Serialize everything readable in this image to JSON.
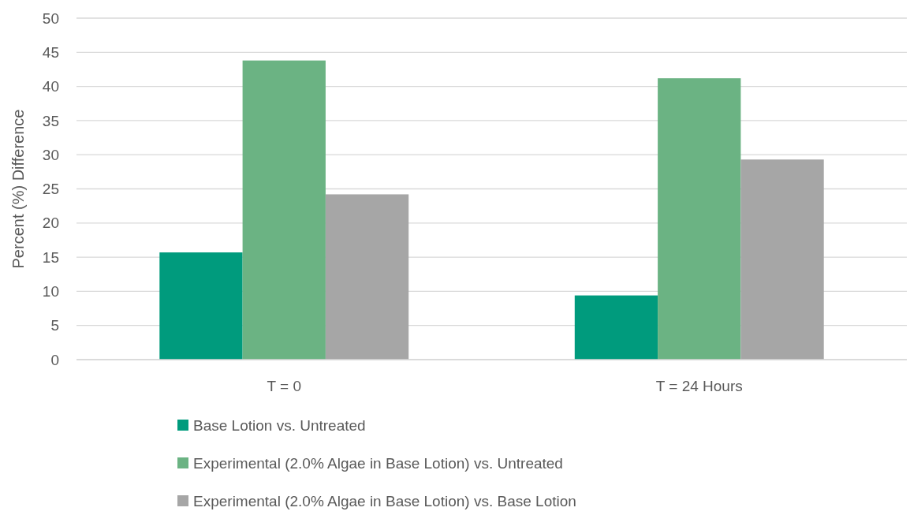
{
  "chart_data": {
    "type": "bar",
    "ylabel": "Percent (%) Difference",
    "categories": [
      "T = 0",
      "T = 24 Hours"
    ],
    "series": [
      {
        "name": "Base Lotion vs. Untreated",
        "color": "#009b7d",
        "values": [
          15.7,
          9.4
        ]
      },
      {
        "name": "Experimental (2.0% Algae in Base Lotion) vs. Untreated",
        "color": "#6bb383",
        "values": [
          43.8,
          41.2
        ]
      },
      {
        "name": "Experimental (2.0% Algae in Base Lotion) vs. Base Lotion",
        "color": "#a6a6a6",
        "values": [
          24.2,
          29.3
        ]
      }
    ],
    "ylim": [
      0,
      50
    ],
    "yticks": [
      0,
      5,
      10,
      15,
      20,
      25,
      30,
      35,
      40,
      45,
      50
    ],
    "grid": "y",
    "legend": "bottom"
  }
}
